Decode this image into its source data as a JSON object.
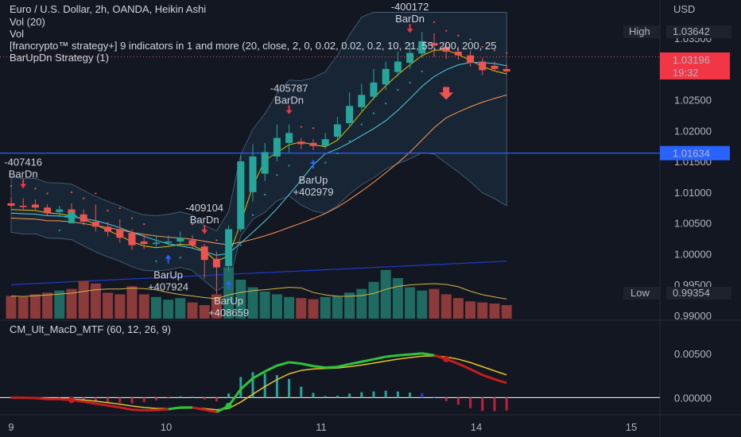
{
  "legend": {
    "title": "Euro / U.S. Dollar, 2h, OANDA, Heikin Ashi",
    "vol20": "Vol (20)",
    "vol": "Vol",
    "indicator": "[francrypto™ strategy+] 9 indicators in 1 and more (20, close, 2, 0, 0.02, 0.02, 0.2, 10, 21, 55, 200, 200, 25",
    "strategy": "BarUpDn Strategy (1)",
    "macd": "CM_Ult_MacD_MTF (60, 12, 26, 9)"
  },
  "price_axis": {
    "currency": "USD",
    "ticks": [
      "1.03500",
      "1.02500",
      "1.02000",
      "1.01500",
      "1.01000",
      "1.00500",
      "1.00000",
      "0.99500",
      "0.99000"
    ],
    "high_label": "High",
    "high_value": "1.03642",
    "low_label": "Low",
    "low_value": "0.99354",
    "last_price": "1.03196",
    "countdown": "19:32",
    "hline_value": "1.01634"
  },
  "macd_axis": {
    "ticks": [
      "0.00500",
      "0.00000"
    ]
  },
  "time_axis": {
    "ticks": [
      "9",
      "10",
      "11",
      "14",
      "15"
    ]
  },
  "colors": {
    "bull": "#26a69a",
    "bear": "#ef5350",
    "background": "#131722",
    "bb_fill": "#1e3246",
    "hline": "#2962ff",
    "up_arrow": "#2962ff",
    "down_arrow": "#f23645"
  },
  "signals": [
    {
      "kind": "down",
      "id": "-407416",
      "label": "BarDn",
      "bar": 1
    },
    {
      "kind": "up",
      "id": "+407924",
      "label": "BarUp",
      "bar": 13
    },
    {
      "kind": "down",
      "id": "-409104",
      "label": "BarDn",
      "bar": 16
    },
    {
      "kind": "up",
      "id": "+408659",
      "label": "BarUp",
      "bar": 18
    },
    {
      "kind": "down",
      "id": "-405787",
      "label": "BarDn",
      "bar": 23
    },
    {
      "kind": "up",
      "id": "+402979",
      "label": "BarUp",
      "bar": 25
    },
    {
      "kind": "down",
      "id": "-400172",
      "label": "BarDn",
      "bar": 33
    }
  ],
  "chart_data": {
    "type": "candlestick",
    "title": "Euro / U.S. Dollar, 2h, OANDA, Heikin Ashi",
    "ylim": [
      0.9895,
      1.0385
    ],
    "x_ticks": [
      "9",
      "10",
      "11",
      "14",
      "15"
    ],
    "candles": [
      [
        1.0082,
        1.0078,
        1.0092,
        1.0074
      ],
      [
        1.0078,
        1.0076,
        1.009,
        1.007
      ],
      [
        1.008,
        1.0075,
        1.0088,
        1.0072
      ],
      [
        1.0075,
        1.0066,
        1.008,
        1.0062
      ],
      [
        1.0068,
        1.0072,
        1.0078,
        1.006
      ],
      [
        1.0072,
        1.0064,
        1.0082,
        1.0058
      ],
      [
        1.0064,
        1.0052,
        1.0072,
        1.0046
      ],
      [
        1.0052,
        1.0044,
        1.008,
        1.0036
      ],
      [
        1.0044,
        1.0036,
        1.0052,
        1.0028
      ],
      [
        1.004,
        1.0026,
        1.0056,
        1.0018
      ],
      [
        1.0034,
        1.0014,
        1.004,
        1.0006
      ],
      [
        1.002,
        1.0016,
        1.003,
        1.0008
      ],
      [
        1.0016,
        1.0018,
        1.003,
        1.001
      ],
      [
        1.0018,
        1.002,
        1.003,
        1.0014
      ],
      [
        1.002,
        1.0026,
        1.0036,
        1.0016
      ],
      [
        1.0022,
        1.0014,
        1.003,
        1.0008
      ],
      [
        1.0012,
        0.999,
        1.0016,
        0.996
      ],
      [
        0.9992,
        0.9978,
        1.0004,
        0.9935
      ],
      [
        0.998,
        1.004,
        1.0046,
        0.9972
      ],
      [
        1.004,
        1.015,
        1.016,
        1.0036
      ],
      [
        1.01,
        1.0158,
        1.0178,
        1.0085
      ],
      [
        1.013,
        1.0165,
        1.018,
        1.0118
      ],
      [
        1.0158,
        1.0188,
        1.021,
        1.015
      ],
      [
        1.018,
        1.0196,
        1.021,
        1.0165
      ],
      [
        1.0182,
        1.0178,
        1.0188,
        1.017
      ],
      [
        1.018,
        1.0175,
        1.0186,
        1.0168
      ],
      [
        1.0175,
        1.0186,
        1.0196,
        1.017
      ],
      [
        1.019,
        1.021,
        1.0222,
        1.0185
      ],
      [
        1.0212,
        1.024,
        1.0262,
        1.0205
      ],
      [
        1.0238,
        1.0258,
        1.0276,
        1.0232
      ],
      [
        1.0255,
        1.0278,
        1.03,
        1.025
      ],
      [
        1.0275,
        1.03,
        1.0312,
        1.0266
      ],
      [
        1.0295,
        1.0312,
        1.0328,
        1.0288
      ],
      [
        1.031,
        1.0326,
        1.0342,
        1.03
      ],
      [
        1.0325,
        1.0345,
        1.036,
        1.0318
      ],
      [
        1.0342,
        1.0338,
        1.0358,
        1.032
      ],
      [
        1.0336,
        1.0328,
        1.0344,
        1.0316
      ],
      [
        1.0328,
        1.0322,
        1.0336,
        1.0315
      ],
      [
        1.0322,
        1.031,
        1.033,
        1.0304
      ],
      [
        1.0312,
        1.0298,
        1.0318,
        1.029
      ],
      [
        1.0305,
        1.03,
        1.0312,
        1.0296
      ],
      [
        1.03,
        1.0296,
        1.0308,
        1.0292
      ]
    ],
    "volume": [
      42,
      40,
      45,
      48,
      52,
      55,
      70,
      65,
      48,
      45,
      60,
      45,
      40,
      35,
      38,
      30,
      25,
      45,
      95,
      72,
      58,
      50,
      45,
      40,
      38,
      36,
      40,
      42,
      48,
      55,
      68,
      90,
      75,
      58,
      52,
      55,
      45,
      38,
      32,
      30,
      28,
      25
    ]
  }
}
